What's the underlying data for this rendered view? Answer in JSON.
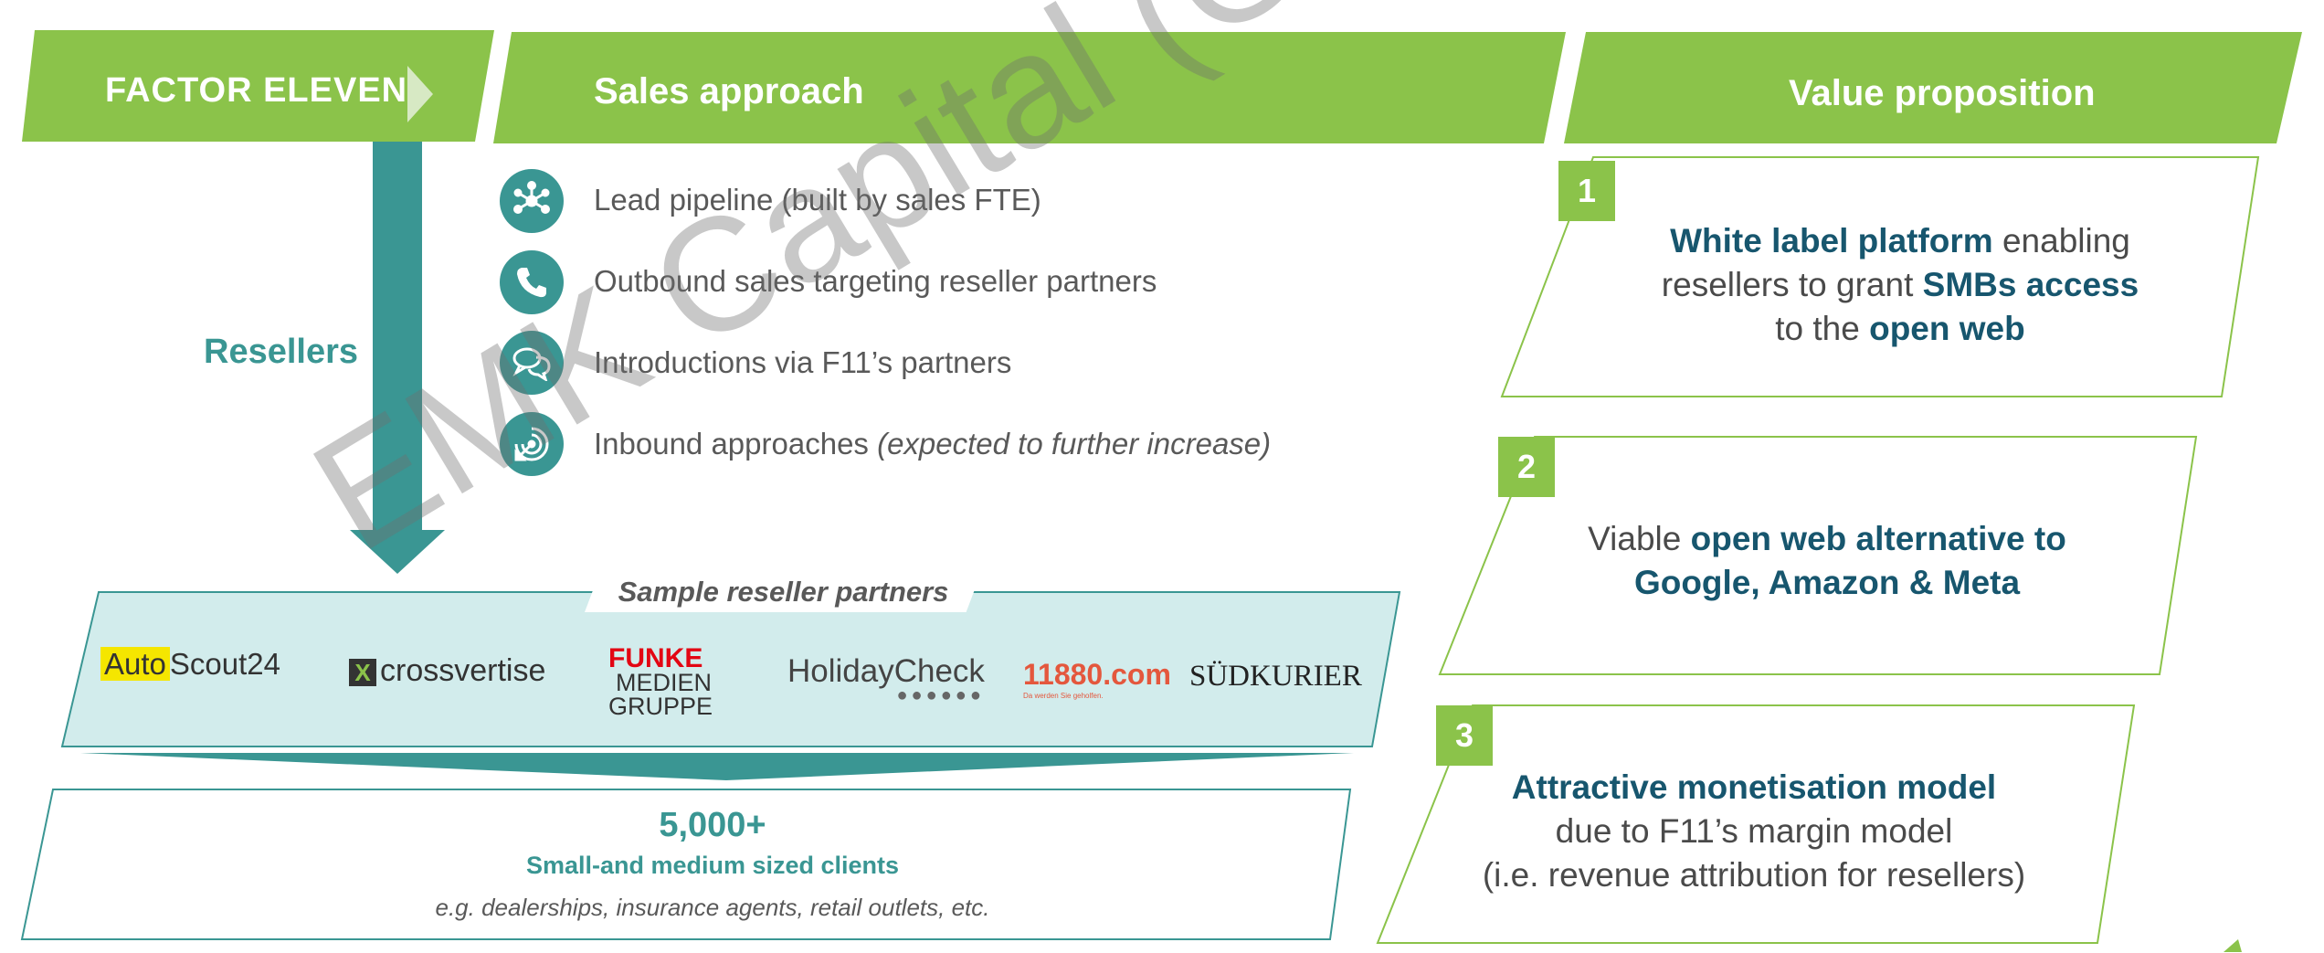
{
  "header": {
    "brand": "FACTOR ELEVEN",
    "sales_title": "Sales approach",
    "value_title": "Value proposition"
  },
  "channel_label": "Resellers",
  "sales_items": [
    {
      "icon": "network-icon",
      "text": "Lead pipeline (built by sales FTE)",
      "italic": ""
    },
    {
      "icon": "phone-icon",
      "text": "Outbound sales targeting reseller partners",
      "italic": ""
    },
    {
      "icon": "chat-icon",
      "text": "Introductions via F11’s partners",
      "italic": ""
    },
    {
      "icon": "target-icon",
      "text": "Inbound approaches ",
      "italic": "(expected to further increase)"
    }
  ],
  "partners": {
    "title": "Sample reseller partners",
    "logos": [
      "Auto",
      "Scout24",
      "crossvertise",
      "FUNKE",
      "MEDIEN",
      "GRUPPE",
      "HolidayCheck",
      "11880.com",
      "Da werden Sie geholfen.",
      "SÜDKURIER"
    ]
  },
  "clients": {
    "count": "5,000+",
    "label": "Small-and medium sized clients",
    "examples": "e.g. dealerships, insurance agents, retail outlets, etc."
  },
  "value_props": [
    {
      "num": "1",
      "l1_strong": "White label platform",
      "l1_rest": " enabling",
      "l2_pre": "resellers to grant ",
      "l2_strong": "SMBs access",
      "l3_pre": "to the ",
      "l3_strong": "open web"
    },
    {
      "num": "2",
      "l1_pre": "Viable ",
      "l1_strong": "open web alternative to",
      "l2_strong": "Google, Amazon & Meta"
    },
    {
      "num": "3",
      "l1_strong": "Attractive monetisation model",
      "l2": "due to F11’s margin model",
      "l3": "(i.e. revenue attribution for resellers)"
    }
  ],
  "watermark": "EMK Capital (Germany) GmbH",
  "colors": {
    "green": "#8bc34a",
    "teal": "#3a9693",
    "navy": "#17566e",
    "light_teal": "#d2ecec"
  }
}
